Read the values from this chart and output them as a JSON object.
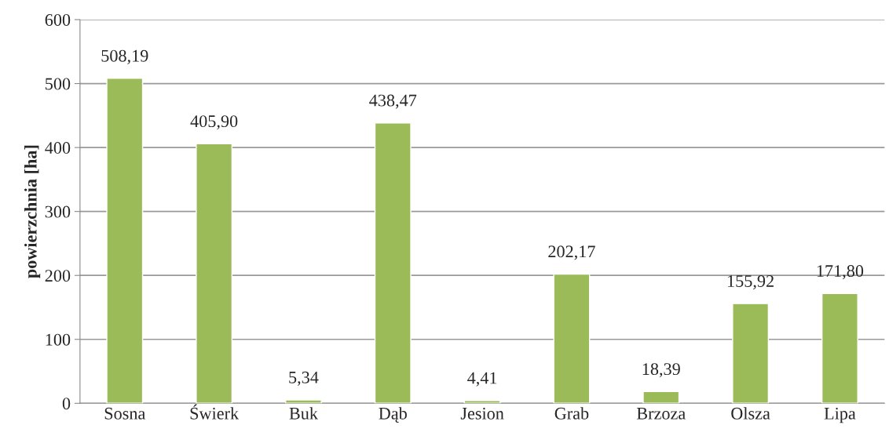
{
  "chart_data": {
    "type": "bar",
    "ylabel": "powierzchnia [ha]",
    "categories": [
      "Sosna",
      "Świerk",
      "Buk",
      "Dąb",
      "Jesion",
      "Grab",
      "Brzoza",
      "Olsza",
      "Lipa"
    ],
    "values": [
      508.19,
      405.9,
      5.34,
      438.47,
      4.41,
      202.17,
      18.39,
      155.92,
      171.8
    ],
    "value_labels": [
      "508,19",
      "405,90",
      "5,34",
      "438,47",
      "4,41",
      "202,17",
      "18,39",
      "155,92",
      "171,80"
    ],
    "color": "#9bbb59",
    "ylim": [
      0,
      600
    ],
    "yticks": [
      0,
      100,
      200,
      300,
      400,
      500,
      600
    ],
    "grid": "y"
  }
}
